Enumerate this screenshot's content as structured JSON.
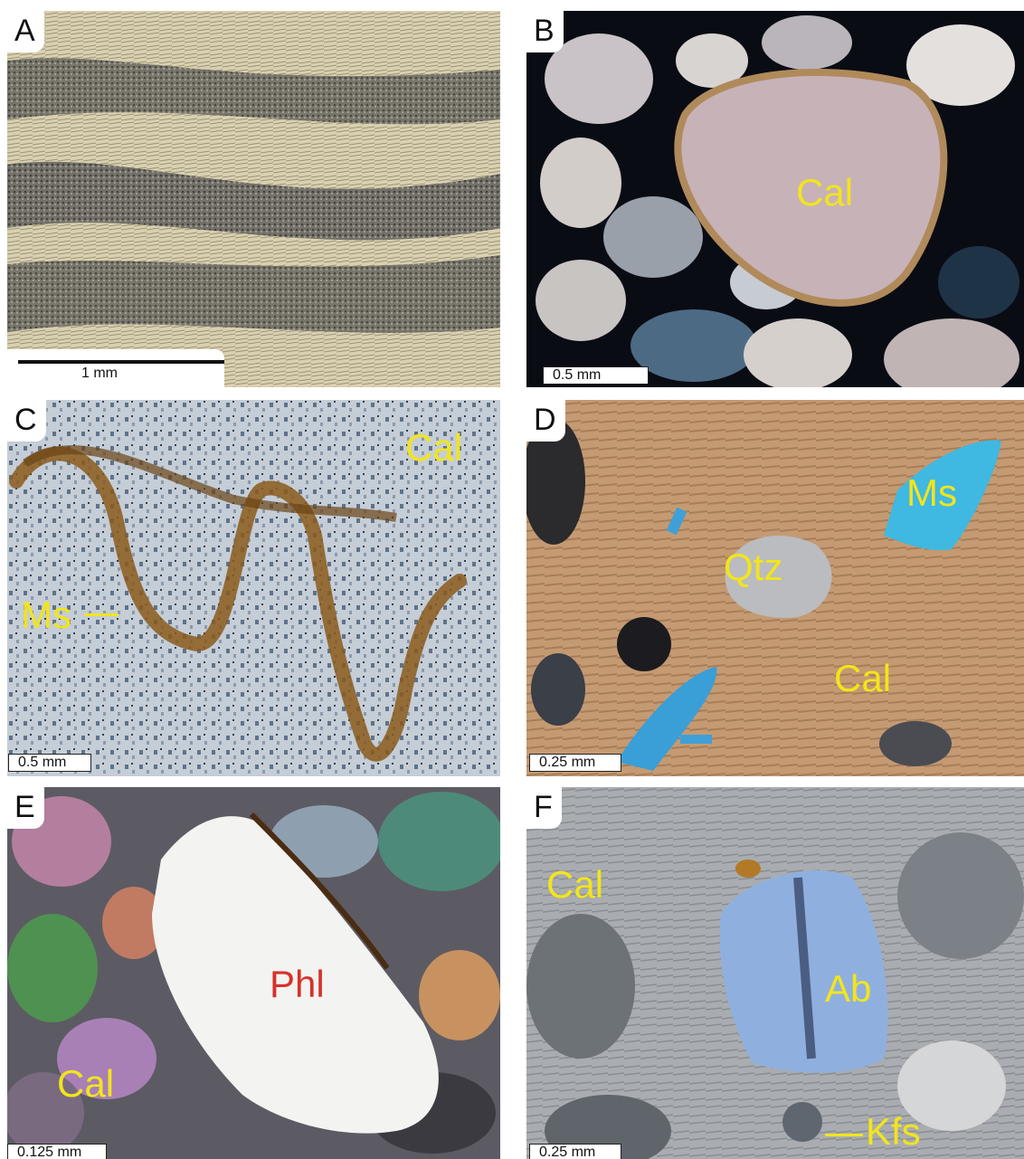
{
  "panels": [
    {
      "letter": "A",
      "scale": "1 mm"
    },
    {
      "letter": "B",
      "scale": "0.5 mm"
    },
    {
      "letter": "C",
      "scale": "0.5 mm"
    },
    {
      "letter": "D",
      "scale": "0.25 mm"
    },
    {
      "letter": "E",
      "scale": "0.125 mm"
    },
    {
      "letter": "F",
      "scale": "0.25 mm"
    }
  ],
  "labels": {
    "b_cal": "Cal",
    "c_cal": "Cal",
    "c_ms": "Ms",
    "d_ms": "Ms",
    "d_qtz": "Qtz",
    "d_cal": "Cal",
    "e_phl": "Phl",
    "e_cal": "Cal",
    "f_cal": "Cal",
    "f_ab": "Ab",
    "f_kfs": "Kfs"
  },
  "colors": {
    "label_yellow": "#f2e51b",
    "label_red": "#d6322a"
  }
}
